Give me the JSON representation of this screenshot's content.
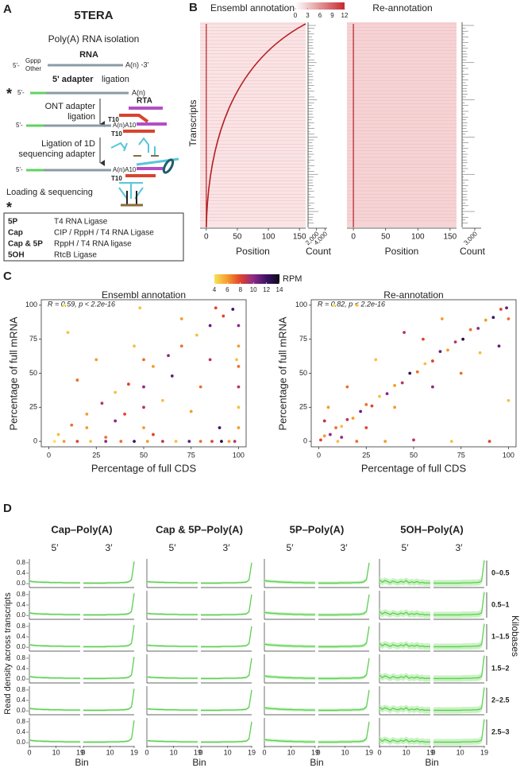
{
  "panel_a": {
    "letter": "A",
    "title": "5TERA",
    "step1": "Poly(A)  RNA  isolation",
    "rna": "RNA",
    "five_end": "5'-",
    "cap_gppp": "Gppp",
    "cap_other": "Other",
    "three_end": "A(n) -3'",
    "step2_highlight": "5' adapter",
    "step2": "ligation",
    "asterisk": "*",
    "polya": "A(n)",
    "step3": [
      "ONT adapter",
      "ligation"
    ],
    "rta": "RTA",
    "t10": "T10",
    "polya_a10": "A(n)A10",
    "step4": [
      "Ligation of 1D",
      "sequencing adapter"
    ],
    "step5": "Loading & sequencing",
    "table": {
      "rows": [
        [
          "5P",
          "T4 RNA Ligase"
        ],
        [
          "Cap",
          "CIP / RppH / T4 RNA Ligase"
        ],
        [
          "Cap & 5P",
          "RppH / T4 RNA ligase"
        ],
        [
          "5OH",
          "RtcB Ligase"
        ]
      ]
    }
  },
  "panel_b": {
    "letter": "B",
    "colorbar": {
      "lim": [
        0,
        12
      ],
      "ticks": [
        0,
        3,
        6,
        9,
        12
      ],
      "colors": [
        "#ffffff",
        "#c62a2f"
      ]
    },
    "y_label": "Transcripts",
    "x_label": "Position",
    "count_label": "Count",
    "xlim": [
      -10,
      160
    ],
    "xticks": [
      0,
      50,
      100,
      150
    ],
    "heatmaps": [
      {
        "title": "Ensembl annotation",
        "count_lim": [
          0,
          4500
        ],
        "count_ticks": [
          {
            "value": 2000,
            "label": "2,000"
          },
          {
            "value": 4000,
            "label": "4,000"
          }
        ]
      },
      {
        "title": "Re-annotation",
        "count_lim": [
          0,
          4500
        ],
        "count_ticks": [
          {
            "value": 3000,
            "label": "3,000"
          }
        ]
      }
    ]
  },
  "panel_c": {
    "letter": "C",
    "colorbar": {
      "label": "RPM",
      "ticks": [
        4,
        6,
        8,
        10,
        12,
        14
      ],
      "colors": [
        "#f7e35a",
        "#f59b2c",
        "#e0432e",
        "#8c2a86",
        "#3c1365",
        "#0c0b18"
      ]
    },
    "x_label": "Percentage of full CDS",
    "y_label": "Percentage of full mRNA",
    "xlim": [
      -4,
      104
    ],
    "ylim": [
      -4,
      104
    ],
    "xticks": [
      0,
      25,
      50,
      75,
      100
    ],
    "yticks": [
      0,
      25,
      50,
      75,
      100
    ],
    "plots": [
      {
        "title": "Ensembl annotation",
        "stat": "R = 0.59, p < 2.2e-16",
        "points": [
          [
            3,
            0,
            4
          ],
          [
            8,
            0,
            6
          ],
          [
            15,
            0,
            8
          ],
          [
            22,
            0,
            5
          ],
          [
            30,
            0,
            10
          ],
          [
            38,
            0,
            7
          ],
          [
            45,
            0,
            12
          ],
          [
            52,
            0,
            6
          ],
          [
            60,
            0,
            9
          ],
          [
            67,
            0,
            5
          ],
          [
            74,
            0,
            11
          ],
          [
            80,
            0,
            7
          ],
          [
            86,
            0,
            8
          ],
          [
            91,
            0,
            13
          ],
          [
            95,
            0,
            6
          ],
          [
            98,
            0,
            9
          ],
          [
            5,
            5,
            5
          ],
          [
            12,
            12,
            7
          ],
          [
            20,
            20,
            6
          ],
          [
            28,
            28,
            9
          ],
          [
            35,
            36,
            5
          ],
          [
            42,
            42,
            8
          ],
          [
            55,
            55,
            6
          ],
          [
            63,
            63,
            10
          ],
          [
            70,
            70,
            7
          ],
          [
            78,
            78,
            5
          ],
          [
            85,
            85,
            11
          ],
          [
            92,
            92,
            8
          ],
          [
            97,
            97,
            12
          ],
          [
            100,
            10,
            6
          ],
          [
            100,
            25,
            5
          ],
          [
            100,
            40,
            9
          ],
          [
            100,
            55,
            7
          ],
          [
            100,
            70,
            6
          ],
          [
            100,
            85,
            10
          ],
          [
            99,
            60,
            5
          ],
          [
            20,
            10,
            6
          ],
          [
            40,
            20,
            8
          ],
          [
            60,
            30,
            5
          ],
          [
            80,
            40,
            7
          ],
          [
            50,
            25,
            9
          ],
          [
            10,
            80,
            5
          ],
          [
            15,
            45,
            7
          ],
          [
            25,
            60,
            6
          ],
          [
            35,
            15,
            10
          ],
          [
            45,
            70,
            5
          ],
          [
            55,
            5,
            8
          ],
          [
            65,
            48,
            11
          ],
          [
            75,
            22,
            6
          ],
          [
            85,
            60,
            9
          ],
          [
            90,
            10,
            12
          ],
          [
            30,
            3,
            7
          ],
          [
            70,
            90,
            6
          ],
          [
            48,
            98,
            5
          ],
          [
            8,
            100,
            4
          ],
          [
            88,
            98,
            8
          ],
          [
            50,
            10,
            6
          ],
          [
            50,
            40,
            10
          ],
          [
            50,
            60,
            7
          ]
        ]
      },
      {
        "title": "Re-annotation",
        "stat": "R = 0.82, p < 2.2e-16",
        "points": [
          [
            1,
            1,
            8
          ],
          [
            3,
            4,
            6
          ],
          [
            6,
            5,
            10
          ],
          [
            9,
            10,
            7
          ],
          [
            12,
            11,
            5
          ],
          [
            15,
            16,
            9
          ],
          [
            18,
            17,
            6
          ],
          [
            22,
            22,
            11
          ],
          [
            25,
            27,
            7
          ],
          [
            28,
            26,
            8
          ],
          [
            32,
            33,
            5
          ],
          [
            36,
            35,
            10
          ],
          [
            40,
            41,
            6
          ],
          [
            44,
            43,
            9
          ],
          [
            48,
            50,
            12
          ],
          [
            52,
            51,
            7
          ],
          [
            56,
            57,
            5
          ],
          [
            60,
            59,
            8
          ],
          [
            64,
            66,
            11
          ],
          [
            68,
            67,
            6
          ],
          [
            72,
            73,
            9
          ],
          [
            76,
            75,
            13
          ],
          [
            80,
            82,
            7
          ],
          [
            84,
            83,
            10
          ],
          [
            88,
            89,
            6
          ],
          [
            92,
            91,
            12
          ],
          [
            96,
            97,
            8
          ],
          [
            99,
            98,
            11
          ],
          [
            10,
            0,
            5
          ],
          [
            20,
            0,
            7
          ],
          [
            35,
            0,
            6
          ],
          [
            50,
            1,
            9
          ],
          [
            70,
            0,
            5
          ],
          [
            90,
            0,
            8
          ],
          [
            5,
            25,
            6
          ],
          [
            15,
            40,
            7
          ],
          [
            30,
            60,
            5
          ],
          [
            45,
            80,
            9
          ],
          [
            25,
            10,
            8
          ],
          [
            40,
            25,
            6
          ],
          [
            60,
            40,
            10
          ],
          [
            75,
            50,
            7
          ],
          [
            85,
            65,
            5
          ],
          [
            95,
            70,
            11
          ],
          [
            65,
            90,
            6
          ],
          [
            55,
            75,
            8
          ],
          [
            100,
            30,
            5
          ],
          [
            100,
            90,
            7
          ],
          [
            8,
            100,
            4
          ],
          [
            20,
            100,
            5
          ],
          [
            3,
            15,
            9
          ],
          [
            12,
            3,
            10
          ]
        ]
      }
    ]
  },
  "panel_d": {
    "letter": "D",
    "y_label": "Read density across transcripts",
    "x_label": "Bin",
    "row_axis_label": "Kilobases",
    "end_labels": [
      "5′",
      "3′"
    ],
    "rows": [
      "0–0.5",
      "0.5–1",
      "1–1.5",
      "1.5–2",
      "2–2.5",
      "2.5–3"
    ],
    "xlim": [
      0,
      19
    ],
    "xticks": [
      0,
      10,
      19
    ],
    "ylim": [
      -0.15,
      0.95
    ],
    "yticks": [
      {
        "value": 0,
        "label": "0.0"
      },
      0.4,
      0.8
    ],
    "color": "#5ccf52",
    "band_color": "#bdefb4",
    "columns": [
      {
        "title": "Cap–Poly(A)",
        "spread": 0.04,
        "five_prime": [
          0.1,
          0.08,
          0.07,
          0.06,
          0.06,
          0.05,
          0.05,
          0.05,
          0.04,
          0.04,
          0.04,
          0.04,
          0.04,
          0.03,
          0.03,
          0.03,
          0.03,
          0.03,
          0.03,
          0.03
        ],
        "three_prime": [
          0.02,
          0.02,
          0.02,
          0.02,
          0.02,
          0.02,
          0.02,
          0.02,
          0.02,
          0.03,
          0.03,
          0.03,
          0.03,
          0.03,
          0.04,
          0.04,
          0.05,
          0.07,
          0.15,
          0.85
        ]
      },
      {
        "title": "Cap & 5P–Poly(A)",
        "spread": 0.04,
        "five_prime": [
          0.08,
          0.07,
          0.06,
          0.06,
          0.05,
          0.05,
          0.05,
          0.04,
          0.04,
          0.04,
          0.04,
          0.04,
          0.03,
          0.03,
          0.03,
          0.03,
          0.03,
          0.03,
          0.03,
          0.03
        ],
        "three_prime": [
          0.02,
          0.02,
          0.02,
          0.02,
          0.02,
          0.02,
          0.02,
          0.02,
          0.03,
          0.03,
          0.03,
          0.03,
          0.03,
          0.03,
          0.04,
          0.04,
          0.05,
          0.06,
          0.14,
          0.8
        ]
      },
      {
        "title": "5P–Poly(A)",
        "spread": 0.06,
        "five_prime": [
          0.12,
          0.1,
          0.09,
          0.08,
          0.08,
          0.07,
          0.06,
          0.06,
          0.05,
          0.05,
          0.05,
          0.04,
          0.04,
          0.04,
          0.04,
          0.03,
          0.03,
          0.03,
          0.03,
          0.03
        ],
        "three_prime": [
          0.02,
          0.02,
          0.02,
          0.02,
          0.02,
          0.02,
          0.02,
          0.02,
          0.03,
          0.03,
          0.03,
          0.03,
          0.03,
          0.04,
          0.04,
          0.04,
          0.05,
          0.07,
          0.16,
          0.8
        ]
      },
      {
        "title": "5OH–Poly(A)",
        "spread": 0.12,
        "five_prime": [
          0.15,
          0.05,
          0.12,
          0.08,
          0.03,
          0.1,
          0.06,
          0.04,
          0.09,
          0.05,
          0.12,
          0.03,
          0.07,
          0.04,
          0.08,
          0.03,
          0.05,
          0.02,
          0.03,
          0.02
        ],
        "three_prime": [
          0.02,
          0.02,
          0.02,
          0.02,
          0.02,
          0.02,
          0.02,
          0.02,
          0.02,
          0.02,
          0.02,
          0.03,
          0.03,
          0.03,
          0.03,
          0.04,
          0.04,
          0.05,
          0.1,
          0.9
        ]
      }
    ]
  }
}
